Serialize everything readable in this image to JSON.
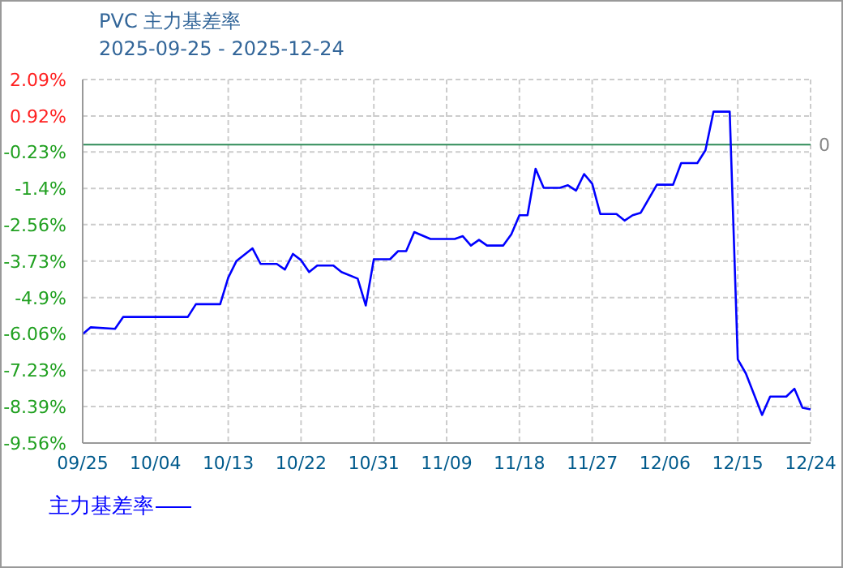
{
  "chart_data": {
    "type": "line",
    "title": "PVC 主力基差率",
    "subtitle": "2025-09-25 - 2025-12-24",
    "x": [
      "2025-09-25",
      "2025-09-26",
      "2025-09-29",
      "2025-09-30",
      "2025-10-08",
      "2025-10-09",
      "2025-10-12",
      "2025-10-13",
      "2025-10-14",
      "2025-10-16",
      "2025-10-17",
      "2025-10-19",
      "2025-10-20",
      "2025-10-21",
      "2025-10-22",
      "2025-10-23",
      "2025-10-24",
      "2025-10-26",
      "2025-10-27",
      "2025-10-29",
      "2025-10-30",
      "2025-10-31",
      "2025-11-02",
      "2025-11-03",
      "2025-11-04",
      "2025-11-05",
      "2025-11-07",
      "2025-11-10",
      "2025-11-11",
      "2025-11-12",
      "2025-11-13",
      "2025-11-14",
      "2025-11-16",
      "2025-11-17",
      "2025-11-18",
      "2025-11-19",
      "2025-11-20",
      "2025-11-21",
      "2025-11-23",
      "2025-11-24",
      "2025-11-25",
      "2025-11-26",
      "2025-11-27",
      "2025-11-28",
      "2025-11-30",
      "2025-12-01",
      "2025-12-02",
      "2025-12-03",
      "2025-12-05",
      "2025-12-07",
      "2025-12-08",
      "2025-12-10",
      "2025-12-11",
      "2025-12-12",
      "2025-12-14",
      "2025-12-15",
      "2025-12-16",
      "2025-12-18",
      "2025-12-19",
      "2025-12-21",
      "2025-12-22",
      "2025-12-23",
      "2025-12-24"
    ],
    "series": [
      {
        "name": "主力基差率",
        "color": "#0000ff",
        "values": [
          -6.07,
          -5.85,
          -5.9,
          -5.52,
          -5.52,
          -5.11,
          -5.11,
          -4.26,
          -3.73,
          -3.32,
          -3.82,
          -3.82,
          -4.0,
          -3.5,
          -3.7,
          -4.08,
          -3.87,
          -3.87,
          -4.08,
          -4.29,
          -5.15,
          -3.67,
          -3.67,
          -3.41,
          -3.41,
          -2.8,
          -3.02,
          -3.02,
          -2.93,
          -3.23,
          -3.05,
          -3.23,
          -3.23,
          -2.87,
          -2.26,
          -2.26,
          -0.77,
          -1.38,
          -1.38,
          -1.3,
          -1.47,
          -0.94,
          -1.25,
          -2.22,
          -2.22,
          -2.43,
          -2.26,
          -2.18,
          -1.28,
          -1.28,
          -0.59,
          -0.59,
          -0.18,
          1.06,
          1.06,
          -6.88,
          -7.33,
          -8.66,
          -8.07,
          -8.07,
          -7.82,
          -8.43,
          -8.48
        ]
      }
    ],
    "xlim": [
      "2025-09-25",
      "2025-12-24"
    ],
    "xticks": [
      {
        "value": "2025-09-25",
        "label": "09/25"
      },
      {
        "value": "2025-10-04",
        "label": "10/04"
      },
      {
        "value": "2025-10-13",
        "label": "10/13"
      },
      {
        "value": "2025-10-22",
        "label": "10/22"
      },
      {
        "value": "2025-10-31",
        "label": "10/31"
      },
      {
        "value": "2025-11-09",
        "label": "11/09"
      },
      {
        "value": "2025-11-18",
        "label": "11/18"
      },
      {
        "value": "2025-11-27",
        "label": "11/27"
      },
      {
        "value": "2025-12-06",
        "label": "12/06"
      },
      {
        "value": "2025-12-15",
        "label": "12/15"
      },
      {
        "value": "2025-12-24",
        "label": "12/24"
      }
    ],
    "ylim": [
      -9.56,
      2.09
    ],
    "yticks": [
      {
        "value": 2.09,
        "label": "2.09%"
      },
      {
        "value": 0.92,
        "label": "0.92%"
      },
      {
        "value": -0.23,
        "label": "-0.23%"
      },
      {
        "value": -1.4,
        "label": "-1.4%"
      },
      {
        "value": -2.56,
        "label": "-2.56%"
      },
      {
        "value": -3.73,
        "label": "-3.73%"
      },
      {
        "value": -4.9,
        "label": "-4.9%"
      },
      {
        "value": -6.06,
        "label": "-6.06%"
      },
      {
        "value": -7.23,
        "label": "-7.23%"
      },
      {
        "value": -8.39,
        "label": "-8.39%"
      },
      {
        "value": -9.56,
        "label": "-9.56%"
      }
    ],
    "ref_lines": [
      {
        "axis": "y",
        "value": 0,
        "label": "0",
        "color": "#2e8b57"
      }
    ],
    "grid": true,
    "legend": "bottom left",
    "marker": "none",
    "line_style": "solid"
  }
}
